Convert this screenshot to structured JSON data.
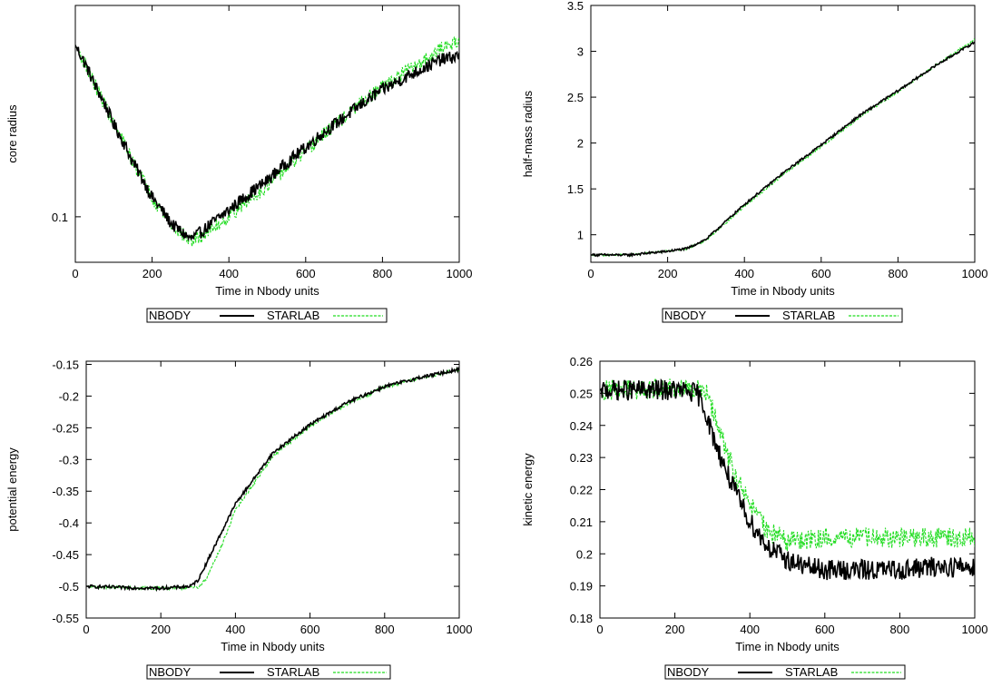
{
  "colors": {
    "nbody": "#000000",
    "starlab": "#22dd22"
  },
  "chart_data": [
    {
      "id": "core",
      "type": "line",
      "ylabel": "core radius",
      "xlabel": "Time in Nbody units",
      "yscale": "log",
      "xlim": [
        0,
        1000
      ],
      "ylim": [
        0.072,
        0.46
      ],
      "xticks": [
        "0",
        "200",
        "400",
        "600",
        "800",
        "1000"
      ],
      "yticks": [
        {
          "v": 0.1,
          "label": "0.1"
        }
      ],
      "legend": [
        "NBODY",
        "STARLAB"
      ],
      "series": [
        {
          "name": "NBODY",
          "noise": 0.045,
          "points": [
            [
              0,
              0.345
            ],
            [
              50,
              0.26
            ],
            [
              100,
              0.195
            ],
            [
              150,
              0.148
            ],
            [
              200,
              0.115
            ],
            [
              250,
              0.095
            ],
            [
              300,
              0.085
            ],
            [
              330,
              0.09
            ],
            [
              400,
              0.105
            ],
            [
              500,
              0.13
            ],
            [
              600,
              0.165
            ],
            [
              700,
              0.205
            ],
            [
              800,
              0.25
            ],
            [
              900,
              0.29
            ],
            [
              950,
              0.31
            ],
            [
              1000,
              0.32
            ]
          ]
        },
        {
          "name": "STARLAB",
          "noise": 0.05,
          "points": [
            [
              0,
              0.345
            ],
            [
              50,
              0.26
            ],
            [
              100,
              0.195
            ],
            [
              150,
              0.148
            ],
            [
              200,
              0.115
            ],
            [
              250,
              0.094
            ],
            [
              300,
              0.084
            ],
            [
              330,
              0.087
            ],
            [
              400,
              0.1
            ],
            [
              500,
              0.125
            ],
            [
              600,
              0.16
            ],
            [
              700,
              0.205
            ],
            [
              800,
              0.255
            ],
            [
              900,
              0.305
            ],
            [
              950,
              0.335
            ],
            [
              1000,
              0.36
            ]
          ]
        }
      ]
    },
    {
      "id": "halfmass",
      "type": "line",
      "ylabel": "half-mass radius",
      "xlabel": "Time in Nbody units",
      "yscale": "linear",
      "xlim": [
        0,
        1000
      ],
      "ylim": [
        0.7,
        3.5
      ],
      "xticks": [
        "0",
        "200",
        "400",
        "600",
        "800",
        "1000"
      ],
      "yticks": [
        {
          "v": 1,
          "label": "1"
        },
        {
          "v": 1.5,
          "label": "1.5"
        },
        {
          "v": 2,
          "label": "2"
        },
        {
          "v": 2.5,
          "label": "2.5"
        },
        {
          "v": 3,
          "label": "3"
        },
        {
          "v": 3.5,
          "label": "3.5"
        }
      ],
      "legend": [
        "NBODY",
        "STARLAB"
      ],
      "series": [
        {
          "name": "NBODY",
          "noise": 0.012,
          "points": [
            [
              0,
              0.78
            ],
            [
              100,
              0.78
            ],
            [
              200,
              0.82
            ],
            [
              250,
              0.85
            ],
            [
              300,
              0.95
            ],
            [
              400,
              1.33
            ],
            [
              500,
              1.67
            ],
            [
              600,
              1.98
            ],
            [
              700,
              2.3
            ],
            [
              800,
              2.57
            ],
            [
              900,
              2.85
            ],
            [
              1000,
              3.1
            ]
          ]
        },
        {
          "name": "STARLAB",
          "noise": 0.012,
          "points": [
            [
              0,
              0.78
            ],
            [
              100,
              0.78
            ],
            [
              200,
              0.82
            ],
            [
              250,
              0.85
            ],
            [
              300,
              0.94
            ],
            [
              400,
              1.31
            ],
            [
              500,
              1.65
            ],
            [
              600,
              1.96
            ],
            [
              700,
              2.28
            ],
            [
              800,
              2.56
            ],
            [
              900,
              2.85
            ],
            [
              1000,
              3.13
            ]
          ]
        }
      ]
    },
    {
      "id": "potential",
      "type": "line",
      "ylabel": "potential energy",
      "xlabel": "Time in Nbody units",
      "yscale": "linear",
      "xlim": [
        0,
        1000
      ],
      "ylim": [
        -0.55,
        -0.145
      ],
      "xticks": [
        "0",
        "200",
        "400",
        "600",
        "800",
        "1000"
      ],
      "yticks": [
        {
          "v": -0.55,
          "label": "-0.55"
        },
        {
          "v": -0.5,
          "label": "-0.5"
        },
        {
          "v": -0.45,
          "label": "-0.45"
        },
        {
          "v": -0.4,
          "label": "-0.4"
        },
        {
          "v": -0.35,
          "label": "-0.35"
        },
        {
          "v": -0.3,
          "label": "-0.3"
        },
        {
          "v": -0.25,
          "label": "-0.25"
        },
        {
          "v": -0.2,
          "label": "-0.2"
        },
        {
          "v": -0.15,
          "label": "-0.15"
        }
      ],
      "legend": [
        "NBODY",
        "STARLAB"
      ],
      "series": [
        {
          "name": "NBODY",
          "noise": 0.0025,
          "points": [
            [
              0,
              -0.5
            ],
            [
              100,
              -0.502
            ],
            [
              200,
              -0.503
            ],
            [
              280,
              -0.5
            ],
            [
              300,
              -0.49
            ],
            [
              350,
              -0.43
            ],
            [
              400,
              -0.37
            ],
            [
              500,
              -0.29
            ],
            [
              600,
              -0.245
            ],
            [
              700,
              -0.21
            ],
            [
              800,
              -0.185
            ],
            [
              900,
              -0.17
            ],
            [
              1000,
              -0.158
            ]
          ]
        },
        {
          "name": "STARLAB",
          "noise": 0.0025,
          "points": [
            [
              0,
              -0.5
            ],
            [
              100,
              -0.502
            ],
            [
              200,
              -0.503
            ],
            [
              300,
              -0.502
            ],
            [
              320,
              -0.49
            ],
            [
              360,
              -0.44
            ],
            [
              400,
              -0.38
            ],
            [
              500,
              -0.295
            ],
            [
              600,
              -0.247
            ],
            [
              700,
              -0.212
            ],
            [
              800,
              -0.186
            ],
            [
              900,
              -0.171
            ],
            [
              1000,
              -0.158
            ]
          ]
        }
      ]
    },
    {
      "id": "kinetic",
      "type": "line",
      "ylabel": "kinetic energy",
      "xlabel": "Time in Nbody units",
      "yscale": "linear",
      "xlim": [
        0,
        1000
      ],
      "ylim": [
        0.18,
        0.26
      ],
      "xticks": [
        "0",
        "200",
        "400",
        "600",
        "800",
        "1000"
      ],
      "yticks": [
        {
          "v": 0.18,
          "label": "0.18"
        },
        {
          "v": 0.19,
          "label": "0.19"
        },
        {
          "v": 0.2,
          "label": "0.2"
        },
        {
          "v": 0.21,
          "label": "0.21"
        },
        {
          "v": 0.22,
          "label": "0.22"
        },
        {
          "v": 0.23,
          "label": "0.23"
        },
        {
          "v": 0.24,
          "label": "0.24"
        },
        {
          "v": 0.25,
          "label": "0.25"
        },
        {
          "v": 0.26,
          "label": "0.26"
        }
      ],
      "legend": [
        "NBODY",
        "STARLAB"
      ],
      "series": [
        {
          "name": "NBODY",
          "noise": 0.0032,
          "points": [
            [
              0,
              0.251
            ],
            [
              100,
              0.251
            ],
            [
              200,
              0.251
            ],
            [
              260,
              0.25
            ],
            [
              280,
              0.245
            ],
            [
              300,
              0.237
            ],
            [
              350,
              0.222
            ],
            [
              400,
              0.21
            ],
            [
              450,
              0.202
            ],
            [
              500,
              0.198
            ],
            [
              550,
              0.196
            ],
            [
              600,
              0.195
            ],
            [
              700,
              0.195
            ],
            [
              800,
              0.195
            ],
            [
              900,
              0.196
            ],
            [
              1000,
              0.196
            ]
          ]
        },
        {
          "name": "STARLAB",
          "noise": 0.0032,
          "points": [
            [
              0,
              0.251
            ],
            [
              100,
              0.251
            ],
            [
              200,
              0.252
            ],
            [
              280,
              0.251
            ],
            [
              300,
              0.245
            ],
            [
              350,
              0.228
            ],
            [
              400,
              0.215
            ],
            [
              450,
              0.207
            ],
            [
              500,
              0.204
            ],
            [
              550,
              0.204
            ],
            [
              600,
              0.205
            ],
            [
              700,
              0.205
            ],
            [
              800,
              0.205
            ],
            [
              900,
              0.205
            ],
            [
              1000,
              0.205
            ]
          ]
        }
      ]
    }
  ]
}
